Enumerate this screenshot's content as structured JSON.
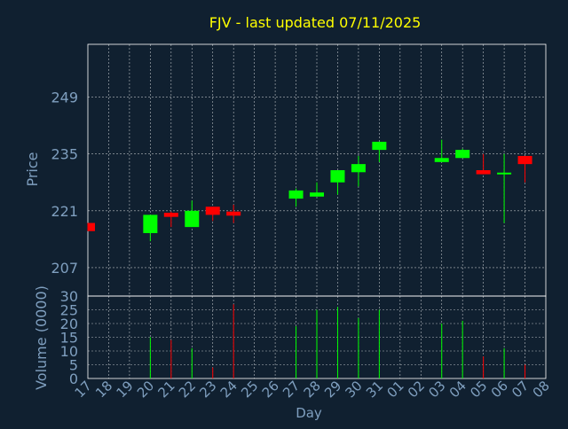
{
  "chart_data": {
    "type": "candlestick",
    "title": "FJV - last updated 07/11/2025",
    "xlabel": "Day",
    "colors": {
      "background": "#102030",
      "title": "#ffff00",
      "axis_text": "#7f9fbf",
      "up": "#00ff00",
      "down": "#ff0000",
      "grid": "#ffffff"
    },
    "x_ticks": [
      "17",
      "18",
      "19",
      "20",
      "21",
      "22",
      "23",
      "24",
      "25",
      "26",
      "27",
      "28",
      "29",
      "30",
      "31",
      "01",
      "02",
      "03",
      "04",
      "05",
      "06",
      "07",
      "08"
    ],
    "price_panel": {
      "ylabel": "Price",
      "ylim": [
        200,
        262
      ],
      "yticks": [
        207,
        221,
        235,
        249
      ]
    },
    "volume_panel": {
      "ylabel": "Volume (0000)",
      "ylim": [
        0,
        30
      ],
      "yticks": [
        0,
        5,
        10,
        15,
        20,
        25,
        30
      ]
    },
    "candles": [
      {
        "day": "17",
        "open": 218,
        "close": 216,
        "high": 218,
        "low": 216,
        "volume": 0
      },
      {
        "day": "20",
        "open": 215.5,
        "close": 220,
        "high": 220,
        "low": 213.5,
        "volume": 15
      },
      {
        "day": "21",
        "open": 220.5,
        "close": 219.5,
        "high": 220.8,
        "low": 217,
        "volume": 14
      },
      {
        "day": "22",
        "open": 217,
        "close": 221,
        "high": 223.5,
        "low": 217,
        "volume": 11
      },
      {
        "day": "23",
        "open": 222,
        "close": 220,
        "high": 222,
        "low": 218.5,
        "volume": 4
      },
      {
        "day": "24",
        "open": 220.8,
        "close": 219.8,
        "high": 222.5,
        "low": 218,
        "volume": 27
      },
      {
        "day": "27",
        "open": 224,
        "close": 226,
        "high": 226.5,
        "low": 222,
        "volume": 19
      },
      {
        "day": "28",
        "open": 224.5,
        "close": 225.5,
        "high": 228,
        "low": 224.5,
        "volume": 25
      },
      {
        "day": "29",
        "open": 228,
        "close": 231,
        "high": 231,
        "low": 225,
        "volume": 26
      },
      {
        "day": "30",
        "open": 230.5,
        "close": 232.5,
        "high": 234.5,
        "low": 227,
        "volume": 22
      },
      {
        "day": "31",
        "open": 236,
        "close": 238,
        "high": 238,
        "low": 233,
        "volume": 25
      },
      {
        "day": "03",
        "open": 233,
        "close": 234,
        "high": 238.5,
        "low": 233,
        "volume": 20
      },
      {
        "day": "04",
        "open": 234,
        "close": 236,
        "high": 236.3,
        "low": 234,
        "volume": 21
      },
      {
        "day": "05",
        "open": 231,
        "close": 230,
        "high": 235,
        "low": 230,
        "volume": 8
      },
      {
        "day": "06",
        "open": 230,
        "close": 230.4,
        "high": 235,
        "low": 218,
        "volume": 11
      },
      {
        "day": "07",
        "open": 234.5,
        "close": 232.5,
        "high": 234.5,
        "low": 228,
        "volume": 5
      }
    ]
  }
}
